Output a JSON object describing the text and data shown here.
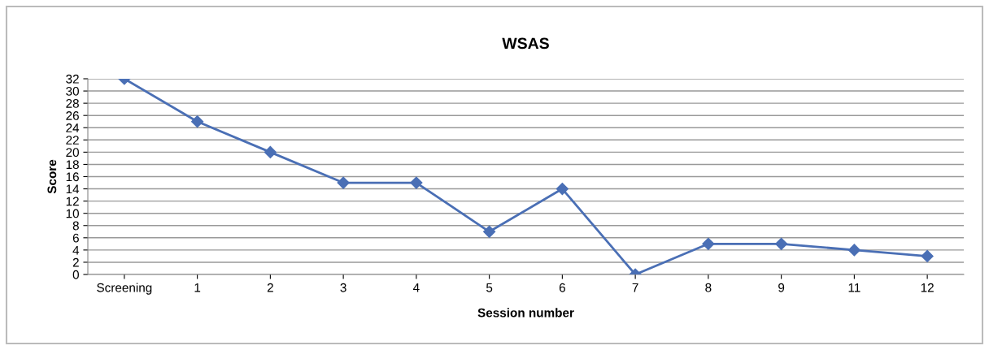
{
  "chart_data": {
    "type": "line",
    "title": "WSAS",
    "xlabel": "Session number",
    "ylabel": "Score",
    "categories": [
      "Screening",
      "1",
      "2",
      "3",
      "4",
      "5",
      "6",
      "7",
      "8",
      "9",
      "11",
      "12"
    ],
    "series": [
      {
        "color": "#4a6fb5",
        "values": [
          32,
          25,
          20,
          15,
          15,
          7,
          14,
          0,
          5,
          5,
          4,
          3
        ]
      }
    ],
    "ylim": [
      0,
      32
    ],
    "yticks": [
      0,
      2,
      4,
      6,
      8,
      10,
      12,
      14,
      16,
      18,
      20,
      22,
      24,
      26,
      28,
      30,
      32
    ],
    "grid": "y",
    "marker": "diamond",
    "line_style": "solid"
  }
}
